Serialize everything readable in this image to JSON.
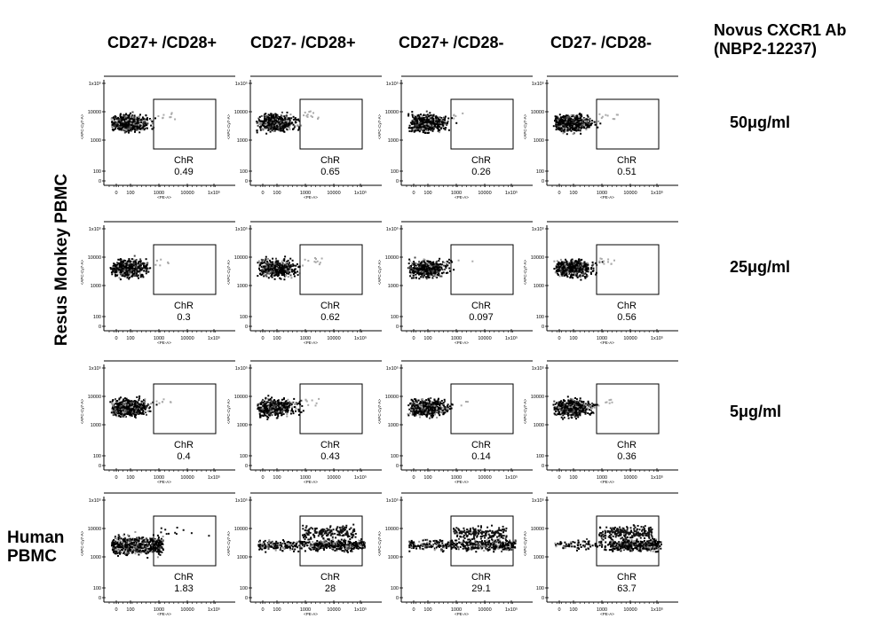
{
  "column_headers": [
    "CD27+ /CD28+",
    "CD27- /CD28+",
    "CD27+ /CD28-",
    "CD27- /CD28-"
  ],
  "antibody_label_line1": "Novus CXCR1 Ab",
  "antibody_label_line2": "(NBP2-12237)",
  "concentrations": [
    "50μg/ml",
    "25μg/ml",
    "5μg/ml"
  ],
  "row_group_resus": "Resus Monkey PBMC",
  "row_group_human_line1": "Human",
  "row_group_human_line2": "PBMC",
  "gate_label": "ChR",
  "colors": {
    "dots": "#000000",
    "background": "#ffffff"
  },
  "chart_data": {
    "type": "scatter",
    "title": "",
    "xlabel": "<PE-A>",
    "ylabel": "<APC-Cy7-A>",
    "x_ticks": [
      "0",
      "100",
      "1000",
      "10000",
      "1x10⁵"
    ],
    "y_ticks": [
      "1x10⁵",
      "10000",
      "1000",
      "100",
      "0"
    ],
    "rows": [
      "50μg/ml",
      "25μg/ml",
      "5μg/ml",
      "Human PBMC"
    ],
    "columns": [
      "CD27+ /CD28+",
      "CD27- /CD28+",
      "CD27+ /CD28-",
      "CD27- /CD28-"
    ],
    "gate_values": [
      [
        0.49,
        0.65,
        0.26,
        0.51
      ],
      [
        0.3,
        0.62,
        0.097,
        0.56
      ],
      [
        0.4,
        0.43,
        0.14,
        0.36
      ],
      [
        1.83,
        28,
        29.1,
        63.7
      ]
    ]
  }
}
